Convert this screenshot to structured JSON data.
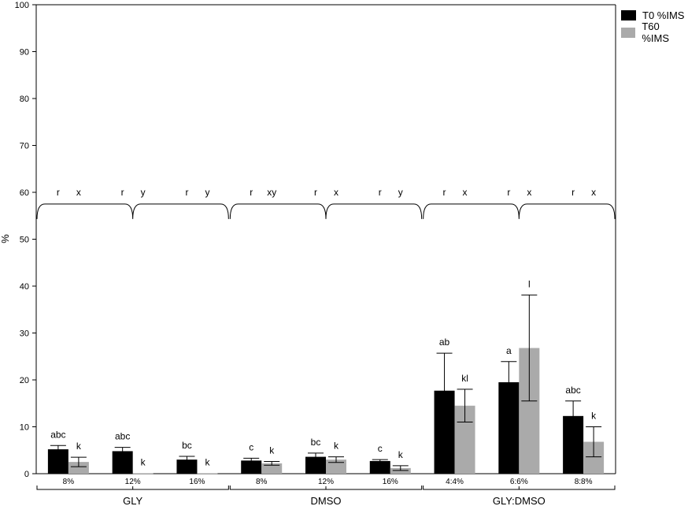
{
  "chart_data": {
    "type": "bar",
    "title": "",
    "xlabel": "",
    "ylabel": "%",
    "ylim": [
      0,
      100
    ],
    "yticks": [
      0,
      10,
      20,
      30,
      40,
      50,
      60,
      70,
      80,
      90,
      100
    ],
    "categories": [
      "8%",
      "12%",
      "16%",
      "8%",
      "12%",
      "16%",
      "4:4%",
      "6:6%",
      "8:8%"
    ],
    "groups": [
      {
        "label": "GLY",
        "categories": [
          0,
          1,
          2
        ]
      },
      {
        "label": "DMSO",
        "categories": [
          3,
          4,
          5
        ]
      },
      {
        "label": "GLY:DMSO",
        "categories": [
          6,
          7,
          8
        ]
      }
    ],
    "series": [
      {
        "name": "T0 %IMS",
        "color": "#000000",
        "values": [
          5.2,
          4.8,
          3.0,
          2.8,
          3.6,
          2.7,
          17.7,
          19.5,
          12.3
        ],
        "errors": [
          0.8,
          0.8,
          0.7,
          0.5,
          0.8,
          0.3,
          8.0,
          4.4,
          3.2
        ],
        "letters": [
          "abc",
          "abc",
          "bc",
          "c",
          "bc",
          "c",
          "ab",
          "a",
          "abc"
        ],
        "group_letters": [
          "r",
          "r",
          "r",
          "r",
          "r",
          "r",
          "r",
          "r",
          "r"
        ]
      },
      {
        "name": "T60 %IMS",
        "color": "#aaaaaa",
        "values": [
          2.5,
          0.1,
          0.1,
          2.2,
          3.0,
          1.2,
          14.5,
          26.8,
          6.8
        ],
        "errors": [
          1.0,
          0.0,
          0.0,
          0.4,
          0.6,
          0.5,
          3.5,
          11.3,
          3.2
        ],
        "letters": [
          "k",
          "k",
          "k",
          "k",
          "k",
          "k",
          "kl",
          "l",
          "k"
        ],
        "group_letters": [
          "x",
          "y",
          "y",
          "xy",
          "x",
          "y",
          "x",
          "x",
          "x"
        ]
      }
    ],
    "grid": false,
    "legend": "top-right"
  }
}
